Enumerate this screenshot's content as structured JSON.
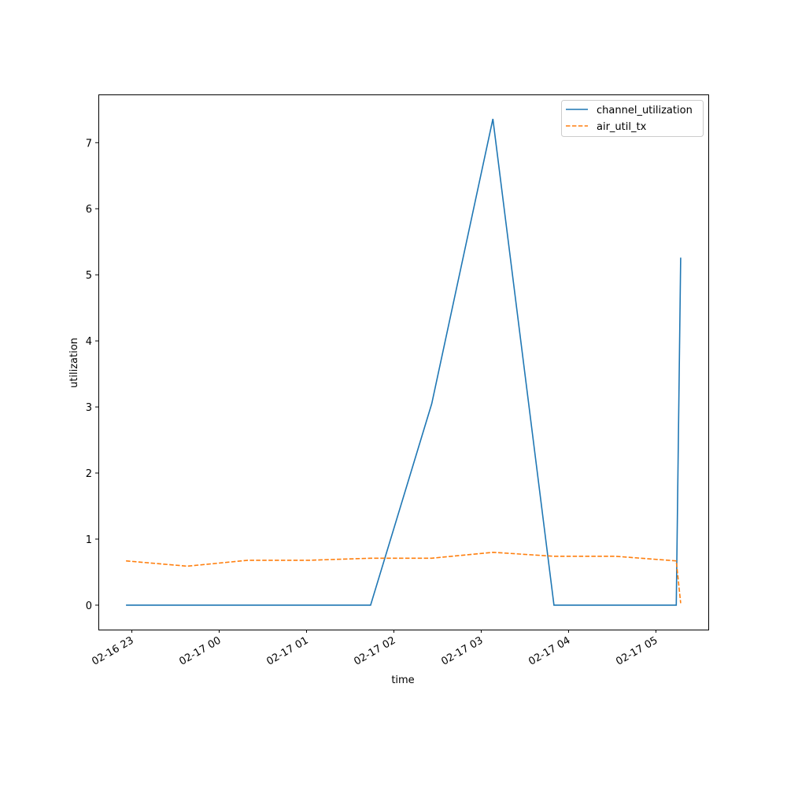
{
  "chart_data": {
    "type": "line",
    "title": "",
    "xlabel": "time",
    "ylabel": "utilization",
    "x_tick_labels": [
      "02-16 23",
      "02-17 00",
      "02-17 01",
      "02-17 02",
      "02-17 03",
      "02-17 04",
      "02-17 05"
    ],
    "y_tick_labels": [
      "0",
      "1",
      "2",
      "3",
      "4",
      "5",
      "6",
      "7"
    ],
    "xlim": [
      "02-16 22:37",
      "02-17 05:36"
    ],
    "ylim": [
      -0.37,
      7.73
    ],
    "grid": false,
    "legend_position": "upper right",
    "x": [
      "02-16 22:56",
      "02-16 23:38",
      "02-17 00:20",
      "02-17 01:02",
      "02-17 01:44",
      "02-17 02:26",
      "02-17 03:08",
      "02-17 03:50",
      "02-17 04:32",
      "02-17 05:14",
      "02-17 05:17"
    ],
    "series": [
      {
        "name": "channel_utilization",
        "color": "#1f77b4",
        "style": "solid",
        "values": [
          0,
          0,
          0,
          0,
          0,
          3.05,
          7.36,
          0,
          0,
          0,
          5.26
        ]
      },
      {
        "name": "air_util_tx",
        "color": "#ff7f0e",
        "style": "dashed",
        "values": [
          0.67,
          0.59,
          0.68,
          0.68,
          0.71,
          0.71,
          0.8,
          0.74,
          0.74,
          0.67,
          0.03
        ]
      }
    ]
  }
}
